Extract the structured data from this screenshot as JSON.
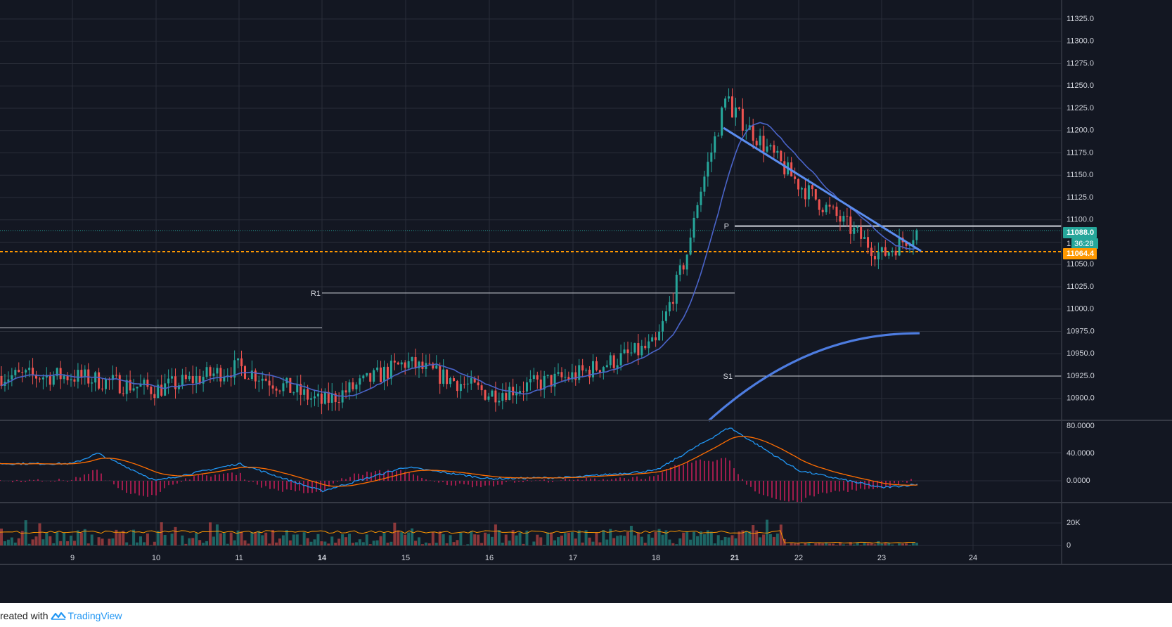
{
  "colors": {
    "background": "#131722",
    "grid": "#2a2e39",
    "up": "#26a69a",
    "down": "#ef5350",
    "axis_text": "#d1d4dc",
    "ma_blue": "#4a64c9",
    "ma_thick": "#4d7ce0",
    "trendline": "#5b8def",
    "pivot_lines": "#d1d4dc",
    "current_price": "#26a69a",
    "orange_level": "#ff9800",
    "macd": "#2196f3",
    "signal": "#ff6d00",
    "hist": "#e91e63",
    "vol_up": "#26a69a",
    "vol_down": "#ef5350",
    "vol_ma": "#ff9800"
  },
  "price_axis": {
    "ticks": [
      "11325.0",
      "11300.0",
      "11275.0",
      "11250.0",
      "11225.0",
      "11200.0",
      "11175.0",
      "11150.0",
      "11125.0",
      "11100.0",
      "11050.0",
      "11025.0",
      "11000.0",
      "10975.0",
      "10950.0",
      "10925.0",
      "10900.0"
    ]
  },
  "price_labels": {
    "current": "11088.0",
    "countdown": "36:28",
    "orange": "11064.4",
    "partial": "1"
  },
  "macd_axis": {
    "ticks": [
      "80.0000",
      "40.0000",
      "0.0000"
    ]
  },
  "volume_axis": {
    "ticks": [
      "20K",
      "0"
    ]
  },
  "time_axis": {
    "ticks": [
      "9",
      "10",
      "11",
      "14",
      "15",
      "16",
      "17",
      "18",
      "21",
      "22",
      "23",
      "24"
    ],
    "bold": [
      "14",
      "21"
    ]
  },
  "pivots": {
    "p_label": "P",
    "r1_label": "R1",
    "s1_label": "S1"
  },
  "footer": {
    "prefix": "reated with",
    "brand": "TradingView"
  },
  "chart_data": {
    "type": "line",
    "title": "",
    "xlabel": "",
    "ylabel": "",
    "x_categories": [
      "9",
      "10",
      "11",
      "14",
      "15",
      "16",
      "17",
      "18",
      "21",
      "22",
      "23",
      "24"
    ],
    "price_range": [
      10875,
      11335
    ],
    "price_anchors": [
      {
        "day": "9",
        "price": 10925
      },
      {
        "day": "10",
        "price": 10910
      },
      {
        "day": "11",
        "price": 10935
      },
      {
        "day": "14",
        "price": 10895
      },
      {
        "day": "15",
        "price": 10940
      },
      {
        "day": "16",
        "price": 10905
      },
      {
        "day": "17",
        "price": 10925
      },
      {
        "day": "18",
        "price": 10960
      },
      {
        "day": "21",
        "price": 11220
      },
      {
        "day": "22",
        "price": 11140
      },
      {
        "day": "23",
        "price": 11060
      },
      {
        "day": "23.4",
        "price": 11088
      }
    ],
    "price_extremes": {
      "high": 11260,
      "low_visible": 10875
    },
    "levels": {
      "P": 11093,
      "R1": 11018,
      "S1": 10925,
      "orange": 11064.4,
      "current": 11088.0,
      "left_line": 10979
    },
    "macd_range": [
      -40,
      85
    ],
    "macd_anchors": [
      {
        "day": "9",
        "macd": 25
      },
      {
        "day": "9.3",
        "macd": 40
      },
      {
        "day": "10",
        "macd": 0
      },
      {
        "day": "11",
        "macd": 25
      },
      {
        "day": "14",
        "macd": -15
      },
      {
        "day": "15",
        "macd": 20
      },
      {
        "day": "16",
        "macd": 3
      },
      {
        "day": "17",
        "macd": 5
      },
      {
        "day": "18",
        "macd": 15
      },
      {
        "day": "20.8",
        "macd": 78
      },
      {
        "day": "22",
        "macd": 15
      },
      {
        "day": "23",
        "macd": -10
      },
      {
        "day": "23.4",
        "macd": -5
      }
    ],
    "volume_range": [
      0,
      27000
    ],
    "volume_ma_level": 12000
  }
}
